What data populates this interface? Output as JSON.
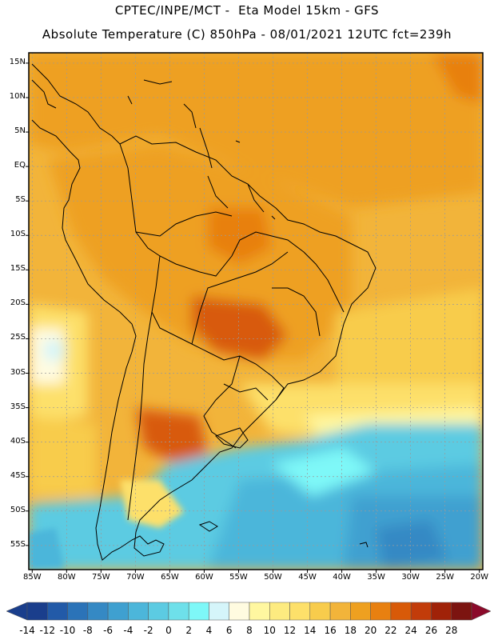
{
  "header": {
    "line1": "CPTEC/INPE/MCT -  Eta Model 15km - GFS",
    "line2": "Absolute Temperature (C) 850hPa - 08/01/2021 12UTC fct=239h"
  },
  "map": {
    "lat_labels": [
      "15N",
      "10N",
      "5N",
      "EQ",
      "5S",
      "10S",
      "15S",
      "20S",
      "25S",
      "30S",
      "35S",
      "40S",
      "45S",
      "50S",
      "55S"
    ],
    "lat_values": [
      15,
      10,
      5,
      0,
      -5,
      -10,
      -15,
      -20,
      -25,
      -30,
      -35,
      -40,
      -45,
      -50,
      -55
    ],
    "lon_labels": [
      "85W",
      "80W",
      "75W",
      "70W",
      "65W",
      "60W",
      "55W",
      "50W",
      "45W",
      "40W",
      "35W",
      "30W",
      "25W",
      "20W"
    ],
    "lon_values": [
      -85,
      -80,
      -75,
      -70,
      -65,
      -60,
      -55,
      -50,
      -45,
      -40,
      -35,
      -30,
      -25,
      -20
    ],
    "extent": {
      "lon_min": -85.5,
      "lon_max": -19.5,
      "lat_min": -58.5,
      "lat_max": 16.5
    },
    "gridlines": true
  },
  "colorbar": {
    "labels": [
      "-14",
      "-12",
      "-10",
      "-8",
      "-6",
      "-4",
      "-2",
      "0",
      "2",
      "4",
      "6",
      "8",
      "10",
      "12",
      "14",
      "16",
      "18",
      "20",
      "22",
      "24",
      "26",
      "28"
    ],
    "colors": [
      "#1a3e8c",
      "#225aa8",
      "#2b73b8",
      "#3589c4",
      "#3fa0d0",
      "#4cb6da",
      "#5ccbe2",
      "#6ee0ea",
      "#7ef8f8",
      "#d5f5fa",
      "#fffbe0",
      "#fff7a0",
      "#fdeb80",
      "#fde06a",
      "#f8cc4c",
      "#f2b43a",
      "#eea020",
      "#e88010",
      "#d85a08",
      "#c23c0a",
      "#a02208",
      "#7c1410"
    ],
    "min_color": "#1a3e8c",
    "max_color": "#8b0a2a"
  }
}
